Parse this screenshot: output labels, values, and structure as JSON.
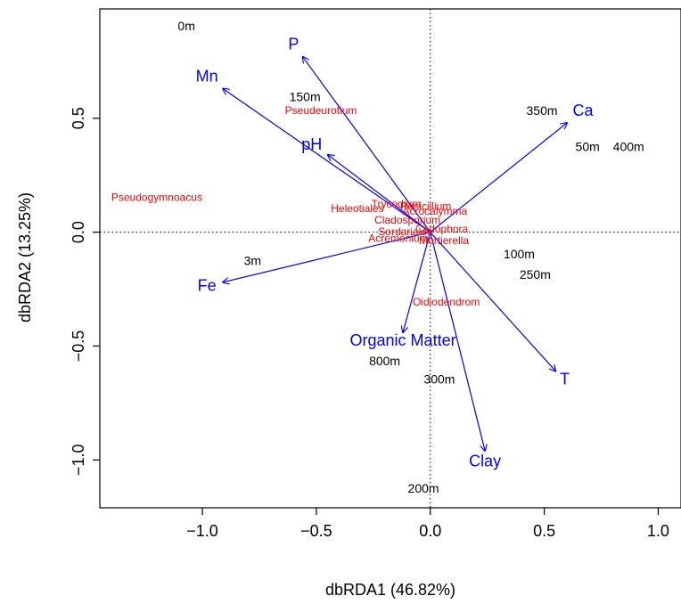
{
  "chart_data": {
    "type": "scatter",
    "title": "",
    "xlabel": "dbRDA1 (46.82%)",
    "ylabel": "dbRDA2 (13.25%)",
    "xlim": [
      -1.45,
      1.1
    ],
    "ylim": [
      -1.21,
      0.98
    ],
    "xticks": [
      -1.0,
      -0.5,
      0.0,
      0.5,
      1.0
    ],
    "xtick_labels": [
      "−1.0",
      "−0.5",
      "0.0",
      "0.5",
      "1.0"
    ],
    "yticks": [
      -1.0,
      -0.5,
      0.0,
      0.5
    ],
    "ytick_labels": [
      "−1.0",
      "−0.5",
      "0.0",
      "0.5"
    ],
    "zero_lines": true,
    "sites": [
      {
        "label": "0m",
        "x": -1.07,
        "y": 0.9
      },
      {
        "label": "150m",
        "x": -0.55,
        "y": 0.59
      },
      {
        "label": "350m",
        "x": 0.49,
        "y": 0.53
      },
      {
        "label": "50m",
        "x": 0.69,
        "y": 0.37
      },
      {
        "label": "400m",
        "x": 0.87,
        "y": 0.37
      },
      {
        "label": "100m",
        "x": 0.39,
        "y": -0.1
      },
      {
        "label": "250m",
        "x": 0.46,
        "y": -0.19
      },
      {
        "label": "3m",
        "x": -0.78,
        "y": -0.13
      },
      {
        "label": "800m",
        "x": -0.2,
        "y": -0.57
      },
      {
        "label": "300m",
        "x": 0.04,
        "y": -0.65
      },
      {
        "label": "200m",
        "x": -0.03,
        "y": -1.13
      }
    ],
    "species": [
      {
        "label": "Pseudeurotium",
        "x": -0.48,
        "y": 0.53
      },
      {
        "label": "Pseudogymnoacus",
        "x": -1.2,
        "y": 0.15
      },
      {
        "label": "Heleotiales",
        "x": -0.32,
        "y": 0.1
      },
      {
        "label": "Trycodium",
        "x": -0.15,
        "y": 0.12
      },
      {
        "label": "Penicillium",
        "x": -0.02,
        "y": 0.11
      },
      {
        "label": "Cladosporium",
        "x": -0.1,
        "y": 0.05
      },
      {
        "label": "Acrocalymma",
        "x": 0.02,
        "y": 0.09
      },
      {
        "label": "Mortierella",
        "x": 0.06,
        "y": -0.04
      },
      {
        "label": "Acremonium",
        "x": -0.14,
        "y": -0.03
      },
      {
        "label": "Sordariales",
        "x": -0.11,
        "y": 0.0
      },
      {
        "label": "Cadophora",
        "x": 0.05,
        "y": 0.01
      },
      {
        "label": "Oidiodendrom",
        "x": 0.07,
        "y": -0.31
      }
    ],
    "env_vectors": [
      {
        "label": "P",
        "x": -0.56,
        "y": 0.77,
        "label_x": -0.6,
        "label_y": 0.82
      },
      {
        "label": "Mn",
        "x": -0.91,
        "y": 0.63,
        "label_x": -0.98,
        "label_y": 0.68
      },
      {
        "label": "Ca",
        "x": 0.6,
        "y": 0.48,
        "label_x": 0.67,
        "label_y": 0.53
      },
      {
        "label": "pH",
        "x": -0.45,
        "y": 0.34,
        "label_x": -0.52,
        "label_y": 0.38
      },
      {
        "label": "Fe",
        "x": -0.91,
        "y": -0.22,
        "label_x": -0.98,
        "label_y": -0.24
      },
      {
        "label": "Organic Matter",
        "x": -0.12,
        "y": -0.44,
        "label_x": -0.12,
        "label_y": -0.48
      },
      {
        "label": "T",
        "x": 0.55,
        "y": -0.61,
        "label_x": 0.59,
        "label_y": -0.65
      },
      {
        "label": "Clay",
        "x": 0.24,
        "y": -0.96,
        "label_x": 0.24,
        "label_y": -1.01
      }
    ],
    "colors": {
      "sites": "#000000",
      "species": "#ff0000",
      "env": "#0000ff"
    }
  }
}
